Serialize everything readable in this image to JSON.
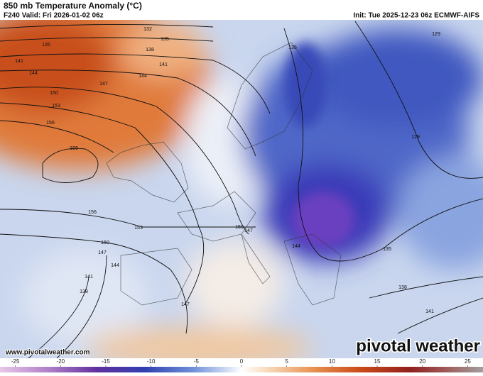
{
  "header": {
    "title": "850 mb Temperature Anomaly (°C)",
    "valid": "F240 Valid: Fri 2026-01-02 06z",
    "init": "Init: Tue 2025-12-23 06z ECMWF-AIFS"
  },
  "map": {
    "contour_labels": [
      "132",
      "135",
      "135",
      "138",
      "141",
      "141",
      "144",
      "144",
      "147",
      "150",
      "153",
      "156",
      "159",
      "156",
      "153",
      "150",
      "147",
      "144",
      "141",
      "138",
      "147",
      "150",
      "147",
      "144",
      "135",
      "138",
      "141",
      "129",
      "129",
      "135"
    ]
  },
  "watermark": "www.pivotalweather.com",
  "logo": "pivotal weather",
  "colorbar": {
    "range": [
      -26.7,
      26.7
    ],
    "ticks": [
      -25,
      -20,
      -15,
      -10,
      -5,
      0,
      5,
      10,
      15,
      20,
      25
    ]
  }
}
